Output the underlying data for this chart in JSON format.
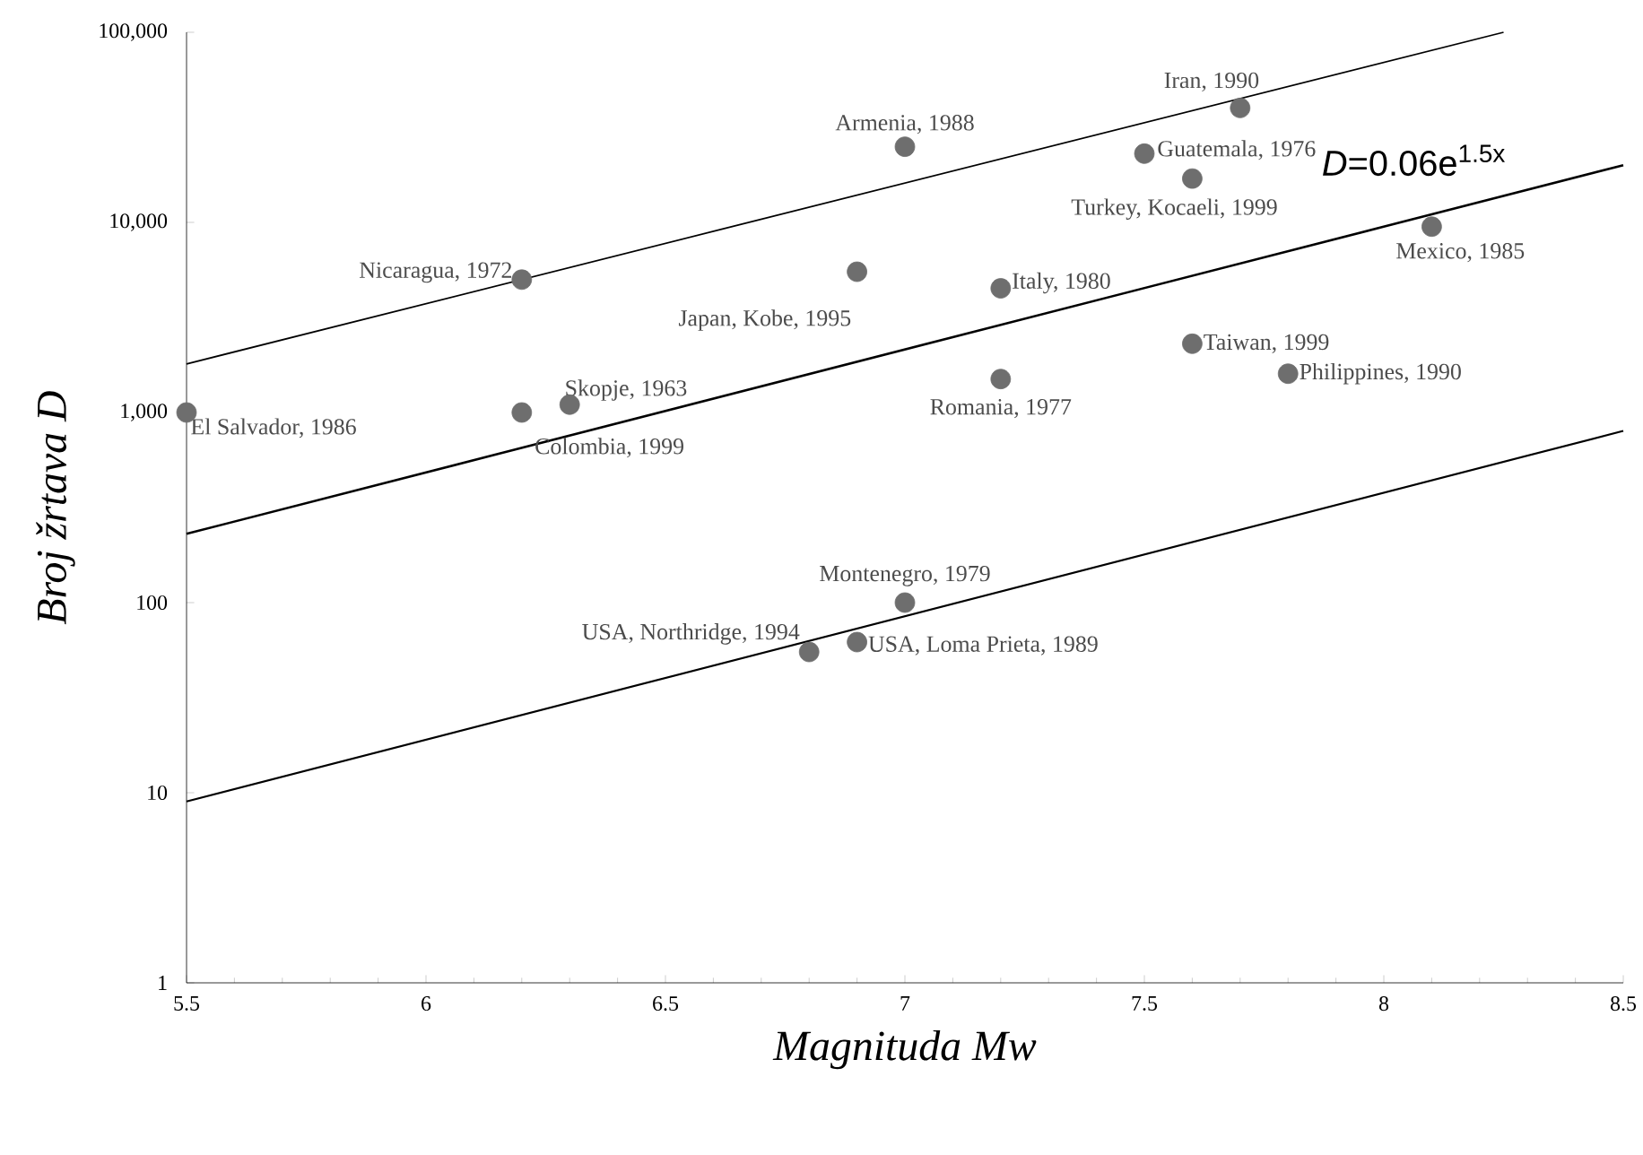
{
  "chart_data": {
    "type": "scatter",
    "xlabel": "Magnituda Mw",
    "ylabel": "Broj žrtava D",
    "log": "y",
    "grid": false,
    "xlim": [
      5.5,
      8.5
    ],
    "ylim": [
      1,
      100000
    ],
    "xticks": [
      5.5,
      6,
      6.5,
      7,
      7.5,
      8,
      8.5
    ],
    "yticks": [
      1,
      10,
      100,
      {
        "value": 1000,
        "label": "1,000"
      },
      {
        "value": 10000,
        "label": "10,000"
      },
      {
        "value": 100000,
        "label": "100,000"
      }
    ],
    "series": [
      {
        "color": "#6e6e6e",
        "marker": "circle",
        "x": [
          5.5,
          6.2,
          6.2,
          6.3,
          7.0,
          6.9,
          7.2,
          7.2,
          7.5,
          7.6,
          7.7,
          7.6,
          7.8,
          8.1,
          7.0,
          6.8,
          6.9
        ],
        "values": [
          1000,
          5000,
          1000,
          1100,
          25000,
          5500,
          4500,
          1500,
          23000,
          17000,
          40000,
          2300,
          1600,
          9500,
          100,
          55,
          62
        ]
      },
      {
        "type": "line",
        "color": "#000000",
        "marker": "none",
        "line_style": "solid",
        "x": [
          5.5,
          8.25
        ],
        "values": [
          1800,
          100000
        ]
      },
      {
        "type": "line",
        "color": "#000000",
        "marker": "none",
        "line_style": "solid",
        "x": [
          5.5,
          8.5
        ],
        "values": [
          230,
          20000
        ]
      },
      {
        "type": "line",
        "color": "#000000",
        "marker": "none",
        "line_style": "solid",
        "x": [
          5.5,
          8.5
        ],
        "values": [
          9,
          800
        ]
      }
    ],
    "annotations": [
      {
        "text": "El Salvador, 1986",
        "x": 5.5,
        "y": 1000
      },
      {
        "text": "Nicaragua, 1972",
        "x": 6.2,
        "y": 5000
      },
      {
        "text": "Colombia, 1999",
        "x": 6.2,
        "y": 1000
      },
      {
        "text": "Skopje, 1963",
        "x": 6.3,
        "y": 1100
      },
      {
        "text": "Armenia, 1988",
        "x": 7.0,
        "y": 25000
      },
      {
        "text": "Japan, Kobe, 1995",
        "x": 6.9,
        "y": 5500
      },
      {
        "text": "Italy, 1980",
        "x": 7.2,
        "y": 4500
      },
      {
        "text": "Romania, 1977",
        "x": 7.2,
        "y": 1500
      },
      {
        "text": "Guatemala, 1976",
        "x": 7.5,
        "y": 23000
      },
      {
        "text": "Turkey, Kocaeli, 1999",
        "x": 7.6,
        "y": 17000
      },
      {
        "text": "Iran, 1990",
        "x": 7.7,
        "y": 40000
      },
      {
        "text": "Taiwan, 1999",
        "x": 7.6,
        "y": 2300
      },
      {
        "text": "Philippines, 1990",
        "x": 7.8,
        "y": 1600
      },
      {
        "text": "Mexico, 1985",
        "x": 8.1,
        "y": 9500
      },
      {
        "text": "Montenegro, 1979",
        "x": 7.0,
        "y": 100
      },
      {
        "text": "USA, Northridge, 1994",
        "x": 6.8,
        "y": 55
      },
      {
        "text": "USA, Loma Prieta, 1989",
        "x": 6.9,
        "y": 62
      },
      {
        "text": "*D*=0.06e$^{1.5x}$",
        "x": 8.2,
        "y": 13200
      }
    ]
  }
}
